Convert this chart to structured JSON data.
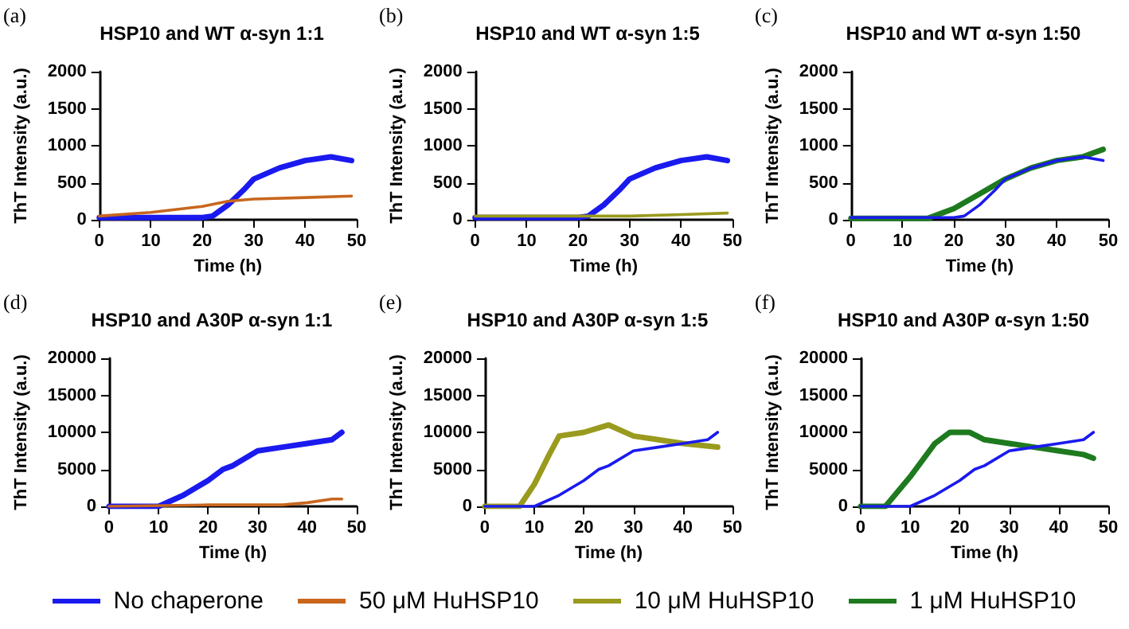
{
  "chart_data": [
    {
      "type": "line",
      "title": "HSP10 and WT α-syn 1:1",
      "xlabel": "Time (h)",
      "ylabel": "ThT Intensity (a.u.)",
      "annotations": [
        "(a)"
      ],
      "xlim": [
        0,
        50
      ],
      "xticks": [
        0,
        10,
        20,
        30,
        40,
        50
      ],
      "ylim": [
        0,
        2000
      ],
      "yticks": [
        0,
        500,
        1000,
        1500,
        2000
      ],
      "legend": "bottom",
      "line_style": "solid",
      "series": [
        {
          "name": "No chaperone",
          "color": "#1a1aef",
          "x": [
            0,
            10,
            20,
            22,
            25,
            28,
            30,
            35,
            40,
            45,
            49
          ],
          "values": [
            30,
            30,
            30,
            50,
            200,
            400,
            550,
            700,
            800,
            850,
            800
          ]
        },
        {
          "name": "50 μM HuHSP10",
          "color": "#c8661e",
          "x": [
            0,
            10,
            20,
            25,
            30,
            40,
            49
          ],
          "values": [
            50,
            100,
            180,
            250,
            280,
            300,
            320
          ]
        }
      ]
    },
    {
      "type": "line",
      "title": "HSP10 and WT α-syn 1:5",
      "xlabel": "Time (h)",
      "ylabel": "ThT Intensity (a.u.)",
      "annotations": [
        "(b)"
      ],
      "xlim": [
        0,
        50
      ],
      "xticks": [
        0,
        10,
        20,
        30,
        40,
        50
      ],
      "ylim": [
        0,
        2000
      ],
      "yticks": [
        0,
        500,
        1000,
        1500,
        2000
      ],
      "legend": "bottom",
      "line_style": "solid",
      "series": [
        {
          "name": "No chaperone",
          "color": "#1a1aef",
          "x": [
            0,
            10,
            20,
            22,
            25,
            28,
            30,
            35,
            40,
            45,
            49
          ],
          "values": [
            30,
            30,
            30,
            50,
            200,
            400,
            550,
            700,
            800,
            850,
            800
          ]
        },
        {
          "name": "10 μM HuHSP10",
          "color": "#9a9a1e",
          "x": [
            0,
            10,
            20,
            30,
            40,
            49
          ],
          "values": [
            50,
            50,
            50,
            50,
            70,
            90
          ]
        }
      ]
    },
    {
      "type": "line",
      "title": "HSP10 and WT α-syn 1:50",
      "xlabel": "Time (h)",
      "ylabel": "ThT Intensity (a.u.)",
      "annotations": [
        "(c)"
      ],
      "xlim": [
        0,
        50
      ],
      "xticks": [
        0,
        10,
        20,
        30,
        40,
        50
      ],
      "ylim": [
        0,
        2000
      ],
      "yticks": [
        0,
        500,
        1000,
        1500,
        2000
      ],
      "legend": "bottom",
      "line_style": "solid",
      "series": [
        {
          "name": "1 μM HuHSP10",
          "color": "#1e7a1e",
          "x": [
            0,
            10,
            15,
            20,
            25,
            30,
            35,
            40,
            45,
            49
          ],
          "values": [
            20,
            20,
            20,
            150,
            350,
            550,
            700,
            800,
            850,
            950
          ]
        },
        {
          "name": "No chaperone",
          "color": "#1a1aef",
          "x": [
            0,
            10,
            20,
            22,
            25,
            28,
            30,
            35,
            40,
            45,
            49
          ],
          "values": [
            30,
            30,
            30,
            50,
            200,
            400,
            550,
            700,
            800,
            850,
            800
          ]
        }
      ]
    },
    {
      "type": "line",
      "title": "HSP10 and A30P α-syn 1:1",
      "xlabel": "Time (h)",
      "ylabel": "ThT Intensity (a.u.)",
      "annotations": [
        "(d)"
      ],
      "xlim": [
        0,
        50
      ],
      "xticks": [
        0,
        10,
        20,
        30,
        40,
        50
      ],
      "ylim": [
        0,
        20000
      ],
      "yticks": [
        0,
        5000,
        10000,
        15000,
        20000
      ],
      "legend": "bottom",
      "line_style": "solid",
      "series": [
        {
          "name": "No chaperone",
          "color": "#1a1aef",
          "x": [
            0,
            10,
            15,
            20,
            23,
            25,
            30,
            35,
            40,
            45,
            47
          ],
          "values": [
            0,
            0,
            1500,
            3500,
            5000,
            5500,
            7500,
            8000,
            8500,
            9000,
            10000
          ]
        },
        {
          "name": "50 μM HuHSP10",
          "color": "#c8661e",
          "x": [
            0,
            20,
            35,
            40,
            45,
            47
          ],
          "values": [
            0,
            200,
            200,
            500,
            1000,
            1000
          ]
        }
      ]
    },
    {
      "type": "line",
      "title": "HSP10 and A30P α-syn 1:5",
      "xlabel": "Time (h)",
      "ylabel": "ThT Intensity (a.u.)",
      "annotations": [
        "(e)"
      ],
      "xlim": [
        0,
        50
      ],
      "xticks": [
        0,
        10,
        20,
        30,
        40,
        50
      ],
      "ylim": [
        0,
        20000
      ],
      "yticks": [
        0,
        5000,
        10000,
        15000,
        20000
      ],
      "legend": "bottom",
      "line_style": "solid",
      "series": [
        {
          "name": "10 μM HuHSP10",
          "color": "#9a9a1e",
          "x": [
            0,
            7,
            10,
            13,
            15,
            20,
            25,
            30,
            35,
            40,
            47
          ],
          "values": [
            0,
            0,
            3000,
            7000,
            9500,
            10000,
            11000,
            9500,
            9000,
            8500,
            8000
          ]
        },
        {
          "name": "No chaperone",
          "color": "#1a1aef",
          "x": [
            0,
            10,
            15,
            20,
            23,
            25,
            30,
            35,
            40,
            45,
            47
          ],
          "values": [
            0,
            0,
            1500,
            3500,
            5000,
            5500,
            7500,
            8000,
            8500,
            9000,
            10000
          ]
        }
      ]
    },
    {
      "type": "line",
      "title": "HSP10 and A30P α-syn 1:50",
      "xlabel": "Time (h)",
      "ylabel": "ThT Intensity (a.u.)",
      "annotations": [
        "(f)"
      ],
      "xlim": [
        0,
        50
      ],
      "xticks": [
        0,
        10,
        20,
        30,
        40,
        50
      ],
      "ylim": [
        0,
        20000
      ],
      "yticks": [
        0,
        5000,
        10000,
        15000,
        20000
      ],
      "legend": "bottom",
      "line_style": "solid",
      "series": [
        {
          "name": "1 μM HuHSP10",
          "color": "#1e7a1e",
          "x": [
            0,
            5,
            10,
            15,
            18,
            22,
            25,
            30,
            35,
            40,
            45,
            47
          ],
          "values": [
            0,
            0,
            4000,
            8500,
            10000,
            10000,
            9000,
            8500,
            8000,
            7500,
            7000,
            6500
          ]
        },
        {
          "name": "No chaperone",
          "color": "#1a1aef",
          "x": [
            0,
            10,
            15,
            20,
            23,
            25,
            30,
            35,
            40,
            45,
            47
          ],
          "values": [
            0,
            0,
            1500,
            3500,
            5000,
            5500,
            7500,
            8000,
            8500,
            9000,
            10000
          ]
        }
      ]
    }
  ]
}
